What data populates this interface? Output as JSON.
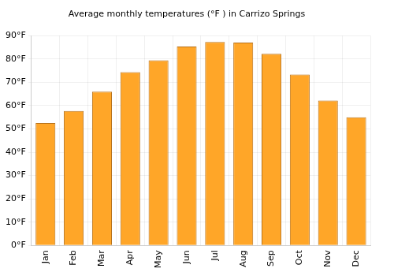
{
  "chart_data": {
    "type": "bar",
    "title": "Average monthly temperatures (°F ) in Carrizo Springs",
    "categories": [
      "Jan",
      "Feb",
      "Mar",
      "Apr",
      "May",
      "Jun",
      "Jul",
      "Aug",
      "Sep",
      "Oct",
      "Nov",
      "Dec"
    ],
    "values": [
      52.5,
      57.7,
      66,
      74.3,
      79.4,
      85.3,
      87.3,
      87,
      82.2,
      73.3,
      62.2,
      55
    ],
    "color": "#ffa628",
    "ylim": [
      0,
      90
    ],
    "yticks": [
      {
        "value": 0,
        "label": "0°F"
      },
      {
        "value": 10,
        "label": "10°F"
      },
      {
        "value": 20,
        "label": "20°F"
      },
      {
        "value": 30,
        "label": "30°F"
      },
      {
        "value": 40,
        "label": "40°F"
      },
      {
        "value": 50,
        "label": "50°F"
      },
      {
        "value": 60,
        "label": "60°F"
      },
      {
        "value": 70,
        "label": "70°F"
      },
      {
        "value": 80,
        "label": "80°F"
      },
      {
        "value": 90,
        "label": "90°F"
      }
    ],
    "grid": true
  }
}
